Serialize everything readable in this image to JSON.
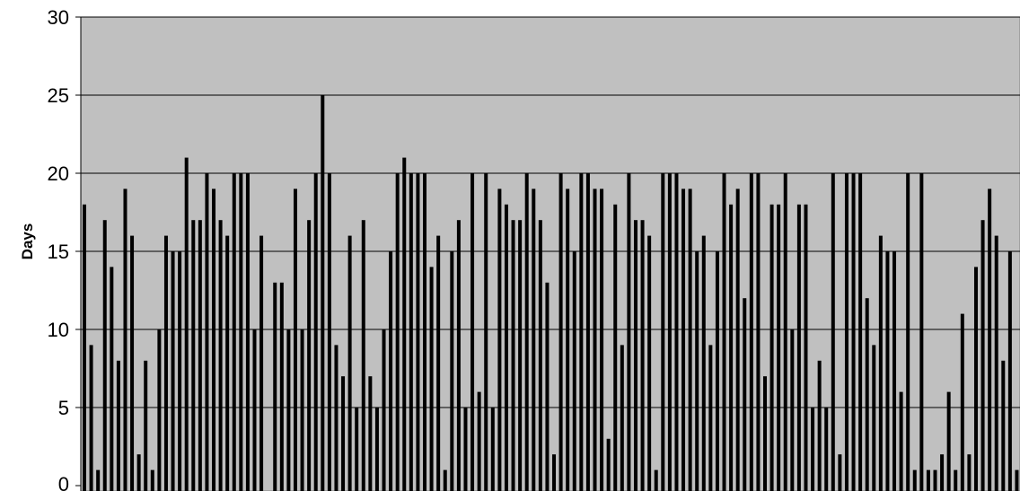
{
  "chart_data": {
    "type": "bar",
    "title": "",
    "xlabel": "",
    "ylabel": "Days",
    "ylim": [
      0,
      30
    ],
    "yticks": [
      0,
      5,
      10,
      15,
      20,
      25,
      30
    ],
    "grid": true,
    "legend": "none",
    "colors": {
      "plot_background": "#c0c0c0",
      "bar_fill": "#000000",
      "gridline": "#000000"
    },
    "values": [
      18,
      9,
      1,
      17,
      14,
      8,
      19,
      16,
      2,
      8,
      1,
      10,
      16,
      15,
      15,
      21,
      17,
      17,
      20,
      19,
      17,
      16,
      20,
      20,
      20,
      10,
      16,
      0,
      13,
      13,
      10,
      19,
      10,
      17,
      20,
      25,
      20,
      9,
      7,
      16,
      5,
      17,
      7,
      5,
      10,
      15,
      20,
      21,
      20,
      20,
      20,
      14,
      16,
      1,
      15,
      17,
      5,
      20,
      6,
      20,
      5,
      19,
      18,
      17,
      17,
      20,
      19,
      17,
      13,
      2,
      20,
      19,
      15,
      20,
      20,
      19,
      19,
      3,
      18,
      9,
      20,
      17,
      17,
      16,
      1,
      20,
      20,
      20,
      19,
      19,
      15,
      16,
      9,
      15,
      20,
      18,
      19,
      12,
      20,
      20,
      7,
      18,
      18,
      20,
      10,
      18,
      18,
      5,
      8,
      5,
      20,
      2,
      20,
      20,
      20,
      12,
      9,
      16,
      15,
      15,
      6,
      20,
      1,
      20,
      1,
      1,
      2,
      6,
      1,
      11,
      2,
      14,
      17,
      19,
      16,
      8,
      15,
      1
    ]
  }
}
